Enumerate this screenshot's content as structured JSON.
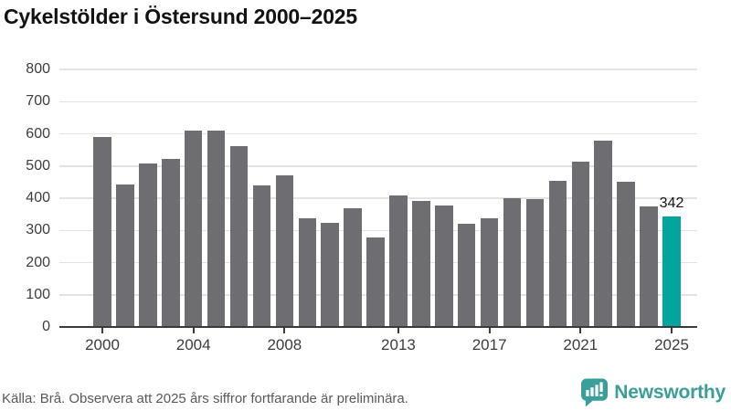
{
  "title": "Cykelstölder i Östersund 2000–2025",
  "source_note": "Källa: Brå. Observera att 2025 års siffror fortfarande är preliminära.",
  "branding": {
    "name": "Newsworthy",
    "icon": "newsworthy-speech-bubble-bar-chart-icon",
    "color": "#3a9f99"
  },
  "chart_data": {
    "type": "bar",
    "title": "Cykelstölder i Östersund 2000–2025",
    "x": [
      2000,
      2001,
      2002,
      2003,
      2004,
      2005,
      2006,
      2007,
      2008,
      2009,
      2010,
      2011,
      2012,
      2013,
      2014,
      2015,
      2016,
      2017,
      2018,
      2019,
      2020,
      2021,
      2022,
      2023,
      2024,
      2025
    ],
    "values": [
      590,
      443,
      507,
      522,
      610,
      610,
      562,
      440,
      470,
      337,
      324,
      369,
      279,
      409,
      392,
      378,
      321,
      338,
      400,
      396,
      455,
      513,
      578,
      452,
      375,
      342
    ],
    "bar_color": "#6e6d72",
    "highlight": {
      "year": 2025,
      "value": 342,
      "label": "342",
      "color": "#00a69e"
    },
    "ylabel": "",
    "xlabel": "",
    "ylim": [
      0,
      800
    ],
    "yticks": [
      0,
      100,
      200,
      300,
      400,
      500,
      600,
      700,
      800
    ],
    "xticks": [
      2000,
      2004,
      2008,
      2013,
      2017,
      2021,
      2025
    ],
    "grid": true,
    "legend": null
  }
}
